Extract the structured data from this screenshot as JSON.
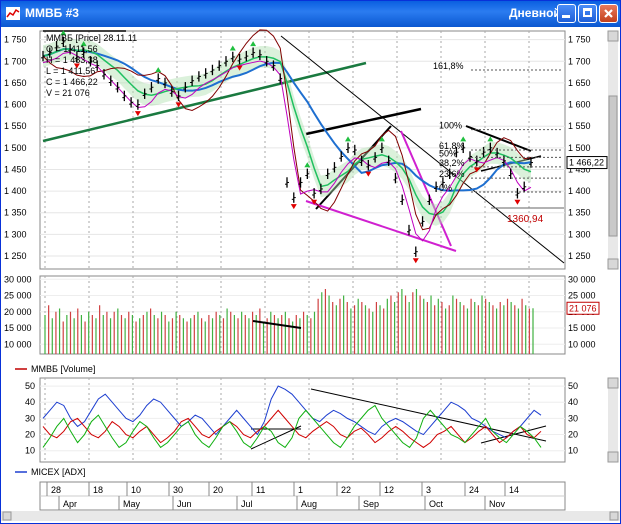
{
  "window": {
    "title": "ММВБ #3",
    "mode": "Дневной",
    "colors": {
      "titlebar": "#0a5fe0",
      "accent_close": "#c2401c"
    }
  },
  "chart_data": [
    {
      "type": "line",
      "panel": "price",
      "legend_lines": [
        "ММВБ [Price] 28.11.11",
        "O = 1 411,56",
        "H = 1 483,38",
        "L = 1 411,56",
        "C = 1 466,22",
        "V = 21 076"
      ],
      "y_ticks": [
        "1 750",
        "1 700",
        "1 650",
        "1 600",
        "1 550",
        "1 500",
        "1 450",
        "1 400",
        "1 350",
        "1 300",
        "1 250"
      ],
      "ylim": [
        1220,
        1770
      ],
      "last_price_label": "1 466,22",
      "fib_levels": [
        {
          "label": "161,8%",
          "value": 1680
        },
        {
          "label": "100%",
          "value": 1542
        },
        {
          "label": "61,8%",
          "value": 1495
        },
        {
          "label": "50%",
          "value": 1478
        },
        {
          "label": "38,2%",
          "value": 1456
        },
        {
          "label": "23,6%",
          "value": 1430
        },
        {
          "label": "0%",
          "value": 1398
        }
      ],
      "support_label": "1360,94",
      "support_value": 1361,
      "close": [
        1712,
        1720,
        1735,
        1745,
        1728,
        1710,
        1720,
        1700,
        1690,
        1670,
        1655,
        1640,
        1620,
        1605,
        1600,
        1625,
        1640,
        1660,
        1650,
        1630,
        1620,
        1640,
        1655,
        1665,
        1672,
        1680,
        1690,
        1700,
        1710,
        1705,
        1712,
        1720,
        1715,
        1700,
        1690,
        1660,
        1420,
        1385,
        1420,
        1440,
        1395,
        1405,
        1440,
        1455,
        1480,
        1500,
        1495,
        1470,
        1460,
        1478,
        1500,
        1470,
        1430,
        1380,
        1310,
        1260,
        1330,
        1380,
        1410,
        1420,
        1440,
        1490,
        1500,
        1480,
        1470,
        1490,
        1500,
        1488,
        1470,
        1440,
        1395,
        1410,
        1466
      ],
      "series_colors": {
        "price": "#000000",
        "ma_long": "#1e6fd0",
        "ma_mid": "#20c060",
        "ma_short": "#800000",
        "cloud": "#b0e0b0",
        "ma_purple": "#c000c0"
      }
    },
    {
      "type": "bar",
      "panel": "volume",
      "legend": "ММВБ [Volume]",
      "y_ticks": [
        "30 000",
        "25 000",
        "20 000",
        "15 000",
        "10 000"
      ],
      "ylim": [
        7000,
        31000
      ],
      "last_volume_label": "21 076",
      "values": [
        19000,
        22000,
        18000,
        20000,
        21000,
        17000,
        19000,
        20000,
        18000,
        21000,
        19000,
        17000,
        20000,
        19000,
        18000,
        22000,
        19000,
        20000,
        18000,
        20000,
        21000,
        19000,
        18000,
        20000,
        19000,
        17000,
        18000,
        19000,
        20000,
        21000,
        19000,
        18000,
        20000,
        19000,
        17000,
        18000,
        20000,
        19000,
        18000,
        17000,
        18000,
        19000,
        20000,
        18000,
        17000,
        19000,
        18000,
        20000,
        19000,
        18000,
        21000,
        20000,
        19000,
        18000,
        20000,
        19000,
        18000,
        20000,
        19000,
        21000,
        17000,
        18000,
        20000,
        19000,
        18000,
        19000,
        20000,
        18000,
        17000,
        19000,
        18000,
        20000,
        19000,
        18000,
        20000,
        24000,
        26000,
        27000,
        25000,
        23000,
        22000,
        24000,
        25000,
        23000,
        21000,
        22000,
        24000,
        23000,
        22000,
        21000,
        20000,
        23000,
        22000,
        21000,
        24000,
        25000,
        23000,
        26000,
        27000,
        25000,
        23000,
        26000,
        27000,
        25000,
        24000,
        23000,
        25000,
        22000,
        24000,
        23000,
        21000,
        22000,
        25000,
        24000,
        23000,
        22000,
        21000,
        24000,
        23000,
        22000,
        25000,
        24000,
        23000,
        22000,
        21000,
        23000,
        22000,
        24000,
        23000,
        22000,
        21000,
        24000,
        22000,
        21000,
        21076
      ]
    },
    {
      "type": "line",
      "panel": "indicator",
      "legend": "MICEX [ADX]",
      "y_ticks": [
        "50",
        "40",
        "30",
        "20",
        "10"
      ],
      "ylim": [
        3,
        55
      ],
      "series": [
        {
          "name": "ADX",
          "color": "#1e3fd0",
          "values": [
            30,
            35,
            40,
            38,
            30,
            25,
            28,
            35,
            42,
            45,
            40,
            35,
            30,
            28,
            32,
            38,
            42,
            40,
            35,
            30,
            25,
            28,
            32,
            30,
            25,
            20,
            25,
            30,
            35,
            30,
            25,
            20,
            28,
            42,
            50,
            48,
            45,
            40,
            35,
            30,
            28,
            32,
            35,
            33,
            30,
            28,
            25,
            22,
            20,
            25,
            28,
            30,
            28,
            25,
            22,
            20,
            25,
            30,
            35,
            40,
            38,
            35,
            30,
            28,
            25,
            22,
            20,
            18,
            22,
            25,
            30,
            35,
            32
          ]
        },
        {
          "name": "+DI",
          "color": "#d00000",
          "values": [
            25,
            20,
            18,
            22,
            28,
            30,
            25,
            20,
            18,
            22,
            28,
            25,
            20,
            18,
            22,
            25,
            20,
            15,
            18,
            22,
            28,
            30,
            25,
            20,
            18,
            22,
            25,
            28,
            25,
            20,
            18,
            22,
            25,
            30,
            35,
            30,
            25,
            20,
            18,
            22,
            25,
            28,
            25,
            20,
            18,
            22,
            24,
            20,
            15,
            18,
            22,
            25,
            22,
            18,
            15,
            12,
            15,
            20,
            22,
            25,
            20,
            15,
            18,
            22,
            25,
            20,
            15,
            18,
            22,
            25,
            20,
            18,
            22
          ]
        },
        {
          "name": "-DI",
          "color": "#10b010",
          "values": [
            12,
            18,
            25,
            30,
            22,
            15,
            20,
            28,
            32,
            25,
            18,
            12,
            15,
            22,
            28,
            25,
            18,
            12,
            15,
            20,
            25,
            28,
            20,
            15,
            12,
            18,
            25,
            28,
            22,
            15,
            12,
            18,
            25,
            22,
            15,
            12,
            18,
            30,
            35,
            30,
            25,
            20,
            15,
            12,
            18,
            25,
            30,
            35,
            38,
            30,
            25,
            20,
            15,
            12,
            18,
            30,
            35,
            30,
            25,
            20,
            18,
            15,
            20,
            25,
            30,
            22,
            18,
            15,
            20,
            25,
            22,
            18,
            12
          ]
        }
      ]
    }
  ],
  "x_axis": {
    "day_labels": [
      "28",
      "18",
      "10",
      "30",
      "20",
      "11",
      "1",
      "22",
      "12",
      "3",
      "24",
      "14"
    ],
    "month_labels": [
      "Apr",
      "May",
      "Jun",
      "Jul",
      "Aug",
      "Sep",
      "Oct",
      "Nov"
    ]
  }
}
